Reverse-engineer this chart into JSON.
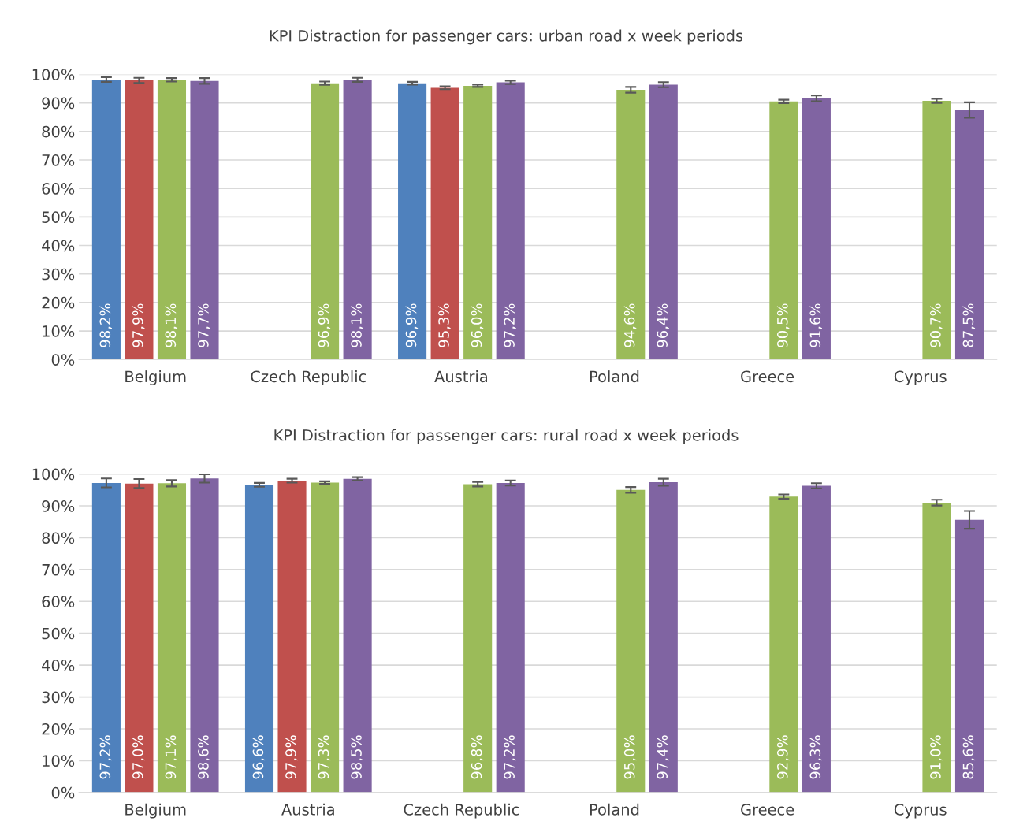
{
  "chart_data": [
    {
      "type": "bar",
      "title": "KPI Distraction for passenger cars: urban road x week periods",
      "categories": [
        "Belgium",
        "Czech Republic",
        "Austria",
        "Poland",
        "Greece",
        "Cyprus"
      ],
      "series": [
        {
          "color": "#4f81bd",
          "values": [
            98.2,
            null,
            96.9,
            null,
            null,
            null
          ],
          "errors": [
            0.8,
            null,
            0.5,
            null,
            null,
            null
          ],
          "value_labels": [
            "98,2%",
            null,
            "96,9%",
            null,
            null,
            null
          ]
        },
        {
          "color": "#c0504d",
          "values": [
            97.9,
            null,
            95.3,
            null,
            null,
            null
          ],
          "errors": [
            0.9,
            null,
            0.5,
            null,
            null,
            null
          ],
          "value_labels": [
            "97,9%",
            null,
            "95,3%",
            null,
            null,
            null
          ]
        },
        {
          "color": "#9bbb59",
          "values": [
            98.1,
            96.9,
            96.0,
            94.6,
            90.5,
            90.7
          ],
          "errors": [
            0.6,
            0.6,
            0.4,
            1.0,
            0.6,
            0.7
          ],
          "value_labels": [
            "98,1%",
            "96,9%",
            "96,0%",
            "94,6%",
            "90,5%",
            "90,7%"
          ]
        },
        {
          "color": "#8064a2",
          "values": [
            97.7,
            98.1,
            97.2,
            96.4,
            91.6,
            87.5
          ],
          "errors": [
            1.0,
            0.7,
            0.6,
            0.9,
            1.0,
            2.7
          ],
          "value_labels": [
            "97,7%",
            "98,1%",
            "97,2%",
            "96,4%",
            "91,6%",
            "87,5%"
          ]
        }
      ],
      "ylim": [
        0,
        100
      ],
      "yticks": [
        {
          "value": 0,
          "label": "0%"
        },
        {
          "value": 10,
          "label": "10%"
        },
        {
          "value": 20,
          "label": "20%"
        },
        {
          "value": 30,
          "label": "30%"
        },
        {
          "value": 40,
          "label": "40%"
        },
        {
          "value": 50,
          "label": "50%"
        },
        {
          "value": 60,
          "label": "60%"
        },
        {
          "value": 70,
          "label": "70%"
        },
        {
          "value": 80,
          "label": "80%"
        },
        {
          "value": 90,
          "label": "90%"
        },
        {
          "value": 100,
          "label": "100%"
        }
      ],
      "grid": "y"
    },
    {
      "type": "bar",
      "title": "KPI Distraction for passenger cars: rural road x week periods",
      "categories": [
        "Belgium",
        "Austria",
        "Czech Republic",
        "Poland",
        "Greece",
        "Cyprus"
      ],
      "series": [
        {
          "color": "#4f81bd",
          "values": [
            97.2,
            96.6,
            null,
            null,
            null,
            null
          ],
          "errors": [
            1.4,
            0.6,
            null,
            null,
            null,
            null
          ],
          "value_labels": [
            "97,2%",
            "96,6%",
            null,
            null,
            null,
            null
          ]
        },
        {
          "color": "#c0504d",
          "values": [
            97.0,
            97.9,
            null,
            null,
            null,
            null
          ],
          "errors": [
            1.4,
            0.6,
            null,
            null,
            null,
            null
          ],
          "value_labels": [
            "97,0%",
            "97,9%",
            null,
            null,
            null,
            null
          ]
        },
        {
          "color": "#9bbb59",
          "values": [
            97.1,
            97.3,
            96.8,
            95.0,
            92.9,
            91.0
          ],
          "errors": [
            1.0,
            0.4,
            0.7,
            0.9,
            0.7,
            0.9
          ],
          "value_labels": [
            "97,1%",
            "97,3%",
            "96,8%",
            "95,0%",
            "92,9%",
            "91,0%"
          ]
        },
        {
          "color": "#8064a2",
          "values": [
            98.6,
            98.5,
            97.2,
            97.4,
            96.3,
            85.6
          ],
          "errors": [
            1.3,
            0.5,
            0.8,
            1.1,
            0.8,
            2.8
          ],
          "value_labels": [
            "98,6%",
            "98,5%",
            "97,2%",
            "97,4%",
            "96,3%",
            "85,6%"
          ]
        }
      ],
      "ylim": [
        0,
        100
      ],
      "yticks": [
        {
          "value": 0,
          "label": "0%"
        },
        {
          "value": 10,
          "label": "10%"
        },
        {
          "value": 20,
          "label": "20%"
        },
        {
          "value": 30,
          "label": "30%"
        },
        {
          "value": 40,
          "label": "40%"
        },
        {
          "value": 50,
          "label": "50%"
        },
        {
          "value": 60,
          "label": "60%"
        },
        {
          "value": 70,
          "label": "70%"
        },
        {
          "value": 80,
          "label": "80%"
        },
        {
          "value": 90,
          "label": "90%"
        },
        {
          "value": 100,
          "label": "100%"
        }
      ],
      "grid": "y"
    }
  ]
}
